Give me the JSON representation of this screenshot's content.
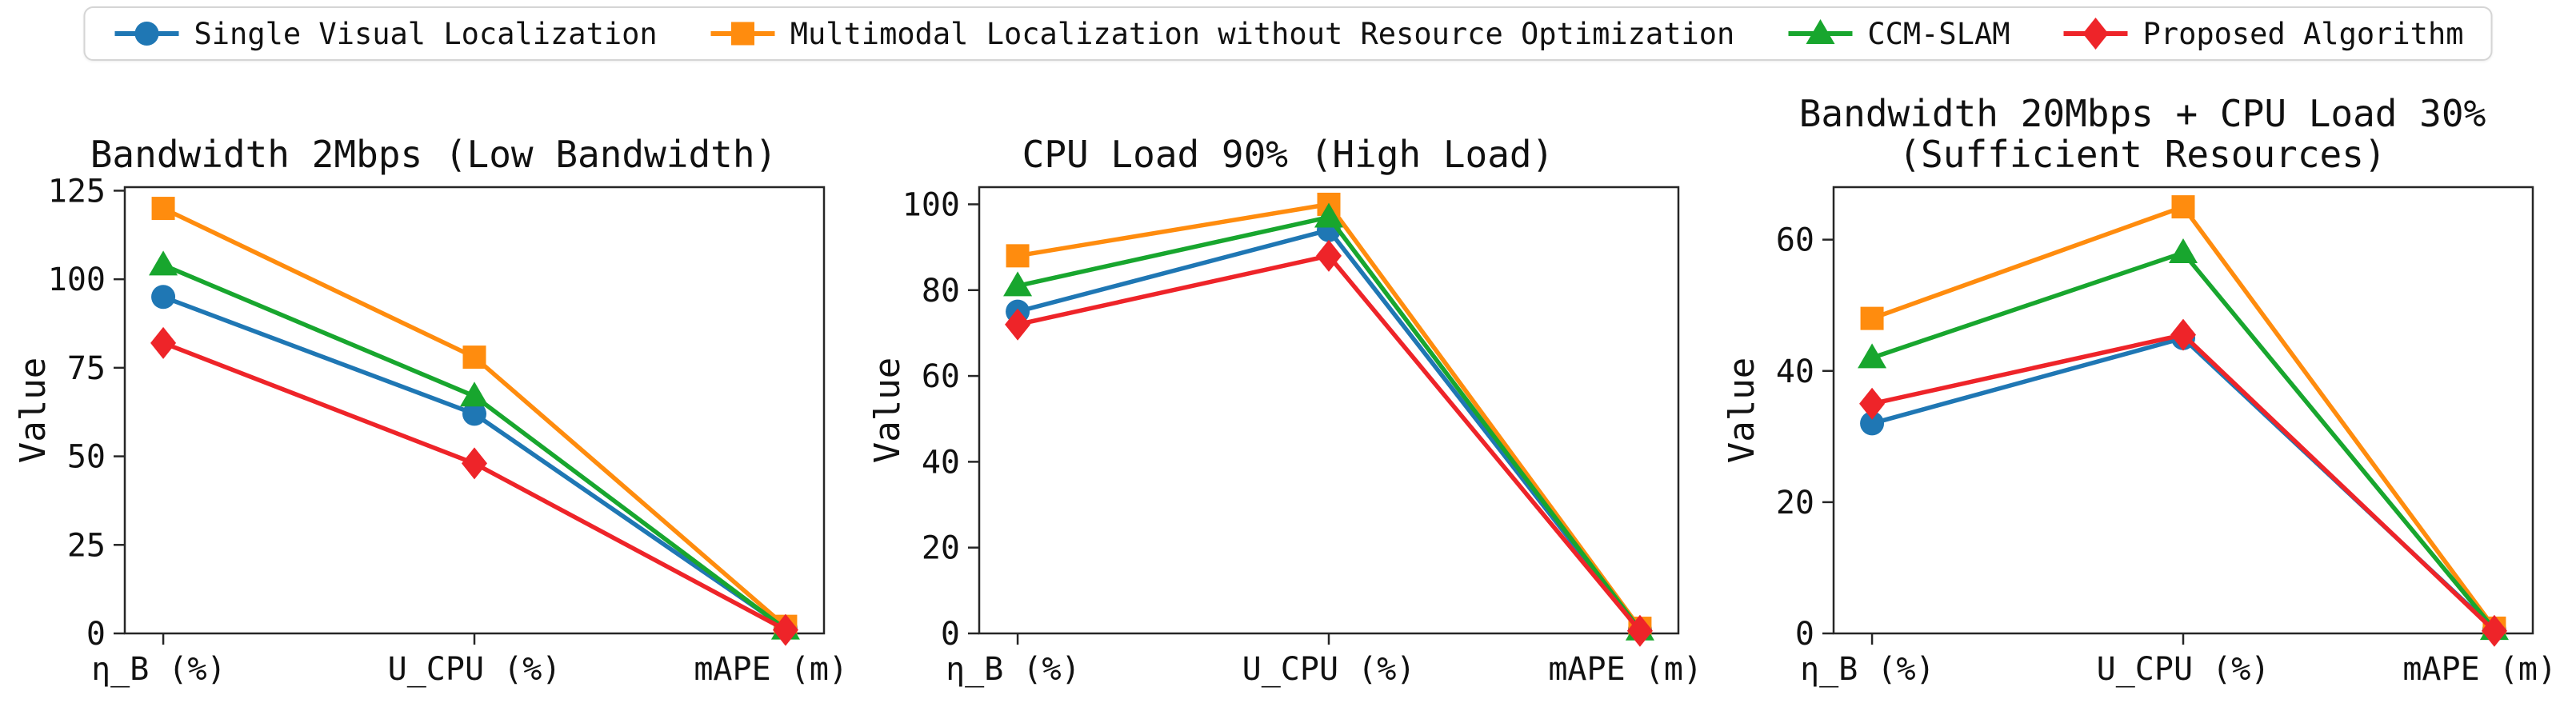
{
  "legend": {
    "items": [
      {
        "label": "Single Visual Localization",
        "color": "#1f77b4",
        "marker": "circle"
      },
      {
        "label": "Multimodal Localization without Resource Optimization",
        "color": "#ff8c0e",
        "marker": "square"
      },
      {
        "label": "CCM-SLAM",
        "color": "#18a62e",
        "marker": "triangle"
      },
      {
        "label": "Proposed Algorithm",
        "color": "#ee2429",
        "marker": "diamond"
      }
    ],
    "position": "top"
  },
  "chart_data": [
    {
      "type": "line",
      "title": "Bandwidth 2Mbps (Low Bandwidth)",
      "title_lines": [
        "Bandwidth 2Mbps (Low Bandwidth)"
      ],
      "xlabel": "",
      "ylabel": "Value",
      "categories": [
        "η_B (%)",
        "U_CPU (%)",
        "mAPE (m)"
      ],
      "yticks": [
        0,
        25,
        50,
        75,
        100,
        125
      ],
      "ylim": [
        0,
        126
      ],
      "grid": false,
      "series": [
        {
          "name": "Single Visual Localization",
          "values": [
            95,
            62,
            1.5
          ]
        },
        {
          "name": "Multimodal Localization without Resource Optimization",
          "values": [
            120,
            78,
            2.0
          ]
        },
        {
          "name": "CCM-SLAM",
          "values": [
            104,
            67,
            1.2
          ]
        },
        {
          "name": "Proposed Algorithm",
          "values": [
            82,
            48,
            1.0
          ]
        }
      ]
    },
    {
      "type": "line",
      "title": "CPU Load 90% (High Load)",
      "title_lines": [
        "CPU Load 90% (High Load)"
      ],
      "xlabel": "",
      "ylabel": "Value",
      "categories": [
        "η_B (%)",
        "U_CPU (%)",
        "mAPE (m)"
      ],
      "yticks": [
        0,
        20,
        40,
        60,
        80,
        100
      ],
      "ylim": [
        0,
        104
      ],
      "grid": false,
      "series": [
        {
          "name": "Single Visual Localization",
          "values": [
            75,
            94,
            0.9
          ]
        },
        {
          "name": "Multimodal Localization without Resource Optimization",
          "values": [
            88,
            100,
            1.2
          ]
        },
        {
          "name": "CCM-SLAM",
          "values": [
            81,
            97,
            0.8
          ]
        },
        {
          "name": "Proposed Algorithm",
          "values": [
            72,
            88,
            0.6
          ]
        }
      ]
    },
    {
      "type": "line",
      "title": "Bandwidth 20Mbps + CPU Load 30% (Sufficient Resources)",
      "title_lines": [
        "Bandwidth 20Mbps + CPU Load 30%",
        "(Sufficient Resources)"
      ],
      "xlabel": "",
      "ylabel": "Value",
      "categories": [
        "η_B (%)",
        "U_CPU (%)",
        "mAPE (m)"
      ],
      "yticks": [
        0,
        20,
        40,
        60
      ],
      "ylim": [
        0,
        68
      ],
      "grid": false,
      "series": [
        {
          "name": "Single Visual Localization",
          "values": [
            32,
            45,
            0.6
          ]
        },
        {
          "name": "Multimodal Localization without Resource Optimization",
          "values": [
            48,
            65,
            0.8
          ]
        },
        {
          "name": "CCM-SLAM",
          "values": [
            42,
            58,
            0.6
          ]
        },
        {
          "name": "Proposed Algorithm",
          "values": [
            35,
            45.5,
            0.4
          ]
        }
      ]
    }
  ]
}
